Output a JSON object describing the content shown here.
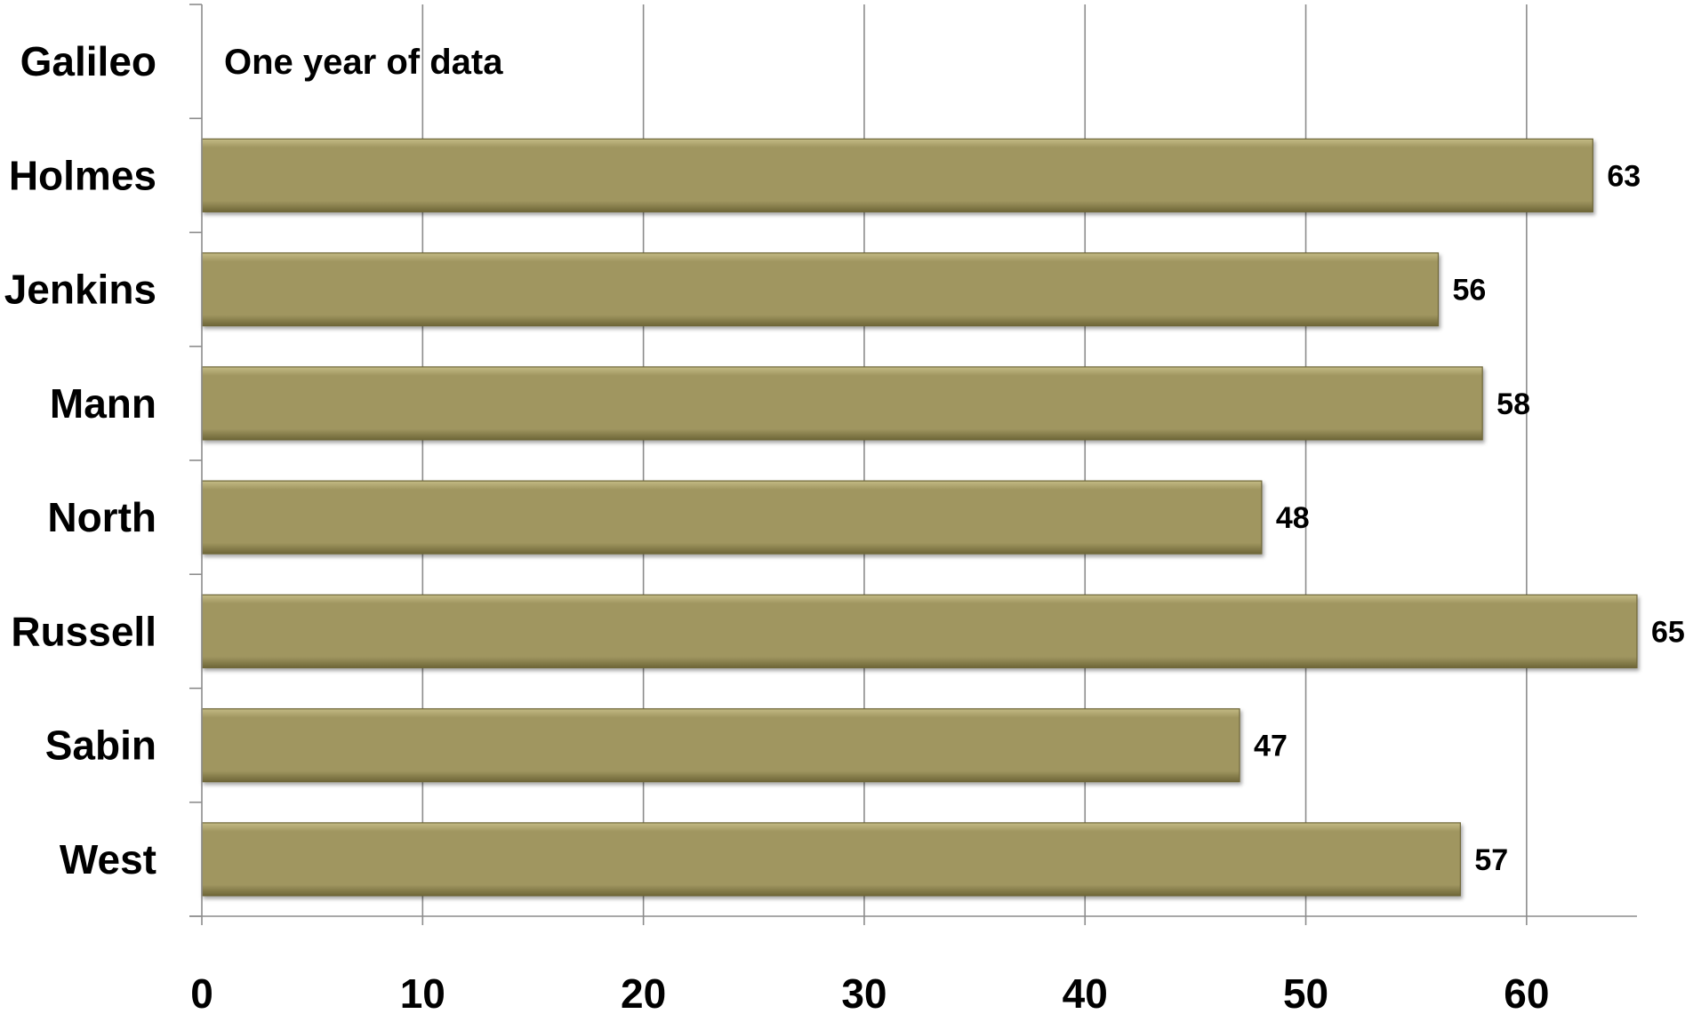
{
  "chart_data": {
    "type": "bar",
    "orientation": "horizontal",
    "categories": [
      "Galileo",
      "Holmes",
      "Jenkins",
      "Mann",
      "North",
      "Russell",
      "Sabin",
      "West"
    ],
    "values": [
      null,
      63,
      56,
      58,
      48,
      65,
      47,
      57
    ],
    "data_labels": [
      "",
      "63",
      "56",
      "58",
      "48",
      "65",
      "47",
      "57"
    ],
    "annotation": "One year of data",
    "title": "",
    "xlabel": "",
    "ylabel": "",
    "xlim": [
      0,
      65
    ],
    "xticks": [
      0,
      10,
      20,
      30,
      40,
      50,
      60
    ],
    "grid": "vertical",
    "legend": "none",
    "colors": {
      "bar_fill": "#A09660",
      "bar_light": "#C4BB85",
      "bar_dark": "#6E6638",
      "grid": "#8c8c8c"
    }
  }
}
